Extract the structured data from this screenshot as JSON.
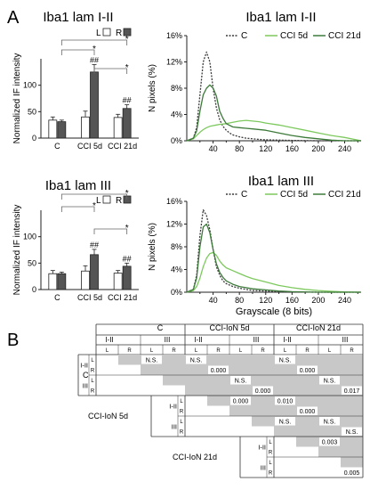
{
  "panel_labels": {
    "a": "A",
    "b": "B"
  },
  "colors": {
    "bar_left": "#ffffff",
    "bar_right": "#555555",
    "line_c": "#3a3a3a",
    "line_cci5": "#7dc95e",
    "line_cci21": "#3d7a3a",
    "table_fill": "#c8c8c8"
  },
  "chart_data": [
    {
      "id": "bar1",
      "type": "bar",
      "title": "Iba1 lam I-II",
      "ylabel": "Normalized IF intensity",
      "ylim": [
        0,
        150
      ],
      "yticks": [
        "0",
        "50",
        "100"
      ],
      "categories": [
        "C",
        "CCI 5d",
        "CCI 21d"
      ],
      "legend": {
        "left": "L",
        "right": "R"
      },
      "series": [
        {
          "name": "L",
          "values": [
            34,
            40,
            39
          ],
          "errors": [
            6,
            11,
            6
          ]
        },
        {
          "name": "R",
          "values": [
            31,
            125,
            56
          ],
          "errors": [
            3,
            14,
            7
          ]
        }
      ],
      "annotations": {
        "right_marks": [
          "##",
          "##"
        ],
        "bracket_marks": [
          "*",
          "*",
          "*"
        ]
      }
    },
    {
      "id": "bar2",
      "type": "bar",
      "title": "Iba1 lam III",
      "ylabel": "Normalized IF intensity",
      "ylim": [
        0,
        150
      ],
      "yticks": [
        "0",
        "50",
        "100"
      ],
      "categories": [
        "C",
        "CCI 5d",
        "CCI 21d"
      ],
      "legend": {
        "left": "L",
        "right": "R"
      },
      "series": [
        {
          "name": "L",
          "values": [
            30,
            35,
            31
          ],
          "errors": [
            6,
            10,
            5
          ]
        },
        {
          "name": "R",
          "values": [
            30,
            66,
            44
          ],
          "errors": [
            3,
            10,
            6
          ]
        }
      ],
      "annotations": {
        "right_marks": [
          "##",
          "##"
        ],
        "bracket_marks": [
          "*",
          "*",
          "*"
        ]
      }
    },
    {
      "id": "line1",
      "type": "line",
      "title": "Iba1 lam I-II",
      "ylabel": "N pixels (%)",
      "xlabel": "",
      "xlim": [
        0,
        265
      ],
      "ylim": [
        0,
        16
      ],
      "xticks": [
        "40",
        "80",
        "120",
        "160",
        "200",
        "240"
      ],
      "yticks": [
        "0%",
        "4%",
        "8%",
        "12%",
        "16%"
      ],
      "series": [
        {
          "name": "C",
          "style": "dotted",
          "x": [
            0,
            10,
            15,
            20,
            25,
            30,
            35,
            40,
            45,
            50,
            55,
            60,
            65,
            70,
            80,
            90,
            100,
            110,
            120,
            140,
            160,
            200,
            240,
            265
          ],
          "y": [
            0,
            0.4,
            2,
            7,
            12,
            13.5,
            12,
            8,
            5,
            3.2,
            2.2,
            1.6,
            1.2,
            0.9,
            0.6,
            0.4,
            0.3,
            0.2,
            0.15,
            0.1,
            0.05,
            0,
            0,
            0
          ]
        },
        {
          "name": "CCI 5d",
          "style": "solid",
          "x": [
            0,
            10,
            15,
            20,
            25,
            30,
            35,
            40,
            45,
            50,
            60,
            70,
            80,
            90,
            100,
            110,
            120,
            140,
            160,
            180,
            200,
            220,
            240,
            255,
            265
          ],
          "y": [
            0,
            0.3,
            0.8,
            1.3,
            1.7,
            2,
            2.2,
            2.3,
            2.4,
            2.5,
            2.6,
            2.8,
            3,
            3.1,
            3,
            2.9,
            2.7,
            2.4,
            2,
            1.6,
            1.2,
            0.8,
            0.5,
            0.2,
            0
          ]
        },
        {
          "name": "CCI 21d",
          "style": "solid",
          "x": [
            0,
            10,
            15,
            20,
            25,
            30,
            35,
            40,
            45,
            50,
            55,
            60,
            70,
            80,
            90,
            100,
            120,
            140,
            160,
            180,
            200,
            220,
            240,
            265
          ],
          "y": [
            0,
            0.4,
            1.5,
            4.5,
            7,
            8,
            8.5,
            8,
            6.8,
            4.5,
            3.4,
            2.6,
            2.1,
            2,
            1.9,
            1.8,
            1.6,
            1.2,
            0.8,
            0.5,
            0.3,
            0.1,
            0,
            0
          ]
        }
      ]
    },
    {
      "id": "line2",
      "type": "line",
      "title": "Iba1 lam III",
      "ylabel": "N pixels (%)",
      "xlabel": "Grayscale (8 bits)",
      "xlim": [
        0,
        265
      ],
      "ylim": [
        0,
        16
      ],
      "xticks": [
        "40",
        "80",
        "120",
        "160",
        "200",
        "240"
      ],
      "yticks": [
        "0%",
        "4%",
        "8%",
        "12%",
        "16%"
      ],
      "series": [
        {
          "name": "C",
          "style": "dotted",
          "x": [
            0,
            10,
            15,
            20,
            25,
            30,
            35,
            40,
            45,
            50,
            55,
            60,
            70,
            80,
            90,
            100,
            120,
            140,
            160,
            200,
            265
          ],
          "y": [
            0,
            0.5,
            3,
            10,
            14.5,
            13.5,
            11,
            7.5,
            4.5,
            3,
            2,
            1.5,
            1,
            0.7,
            0.5,
            0.3,
            0.2,
            0.1,
            0.05,
            0,
            0
          ]
        },
        {
          "name": "CCI 5d",
          "style": "solid",
          "x": [
            0,
            10,
            15,
            20,
            25,
            30,
            35,
            40,
            45,
            50,
            55,
            60,
            70,
            80,
            90,
            100,
            120,
            140,
            160,
            180,
            200,
            220,
            240,
            265
          ],
          "y": [
            0,
            0.3,
            1,
            2.5,
            4.5,
            6,
            6.8,
            7,
            6.5,
            5.5,
            4.8,
            4.3,
            3.8,
            3.3,
            2.8,
            2.4,
            1.8,
            1.2,
            0.8,
            0.5,
            0.3,
            0.15,
            0.05,
            0
          ]
        },
        {
          "name": "CCI 21d",
          "style": "solid",
          "x": [
            0,
            10,
            15,
            20,
            25,
            30,
            35,
            40,
            45,
            50,
            55,
            60,
            70,
            80,
            90,
            100,
            120,
            140,
            160,
            200,
            265
          ],
          "y": [
            0,
            0.5,
            2.5,
            8,
            11.5,
            12,
            10.5,
            7.5,
            5,
            3.5,
            2.6,
            2,
            1.4,
            1,
            0.8,
            0.6,
            0.4,
            0.2,
            0.1,
            0,
            0
          ]
        }
      ]
    },
    {
      "id": "table",
      "type": "table",
      "groups": [
        "C",
        "CCI-IoN 5d",
        "CCI-IoN 21d"
      ],
      "layers": [
        "I-II",
        "III"
      ],
      "sides": [
        "L",
        "R"
      ],
      "row_groups": [
        "C",
        "CCI-IoN 5d",
        "CCI-IoN 21d"
      ],
      "cells": [
        {
          "r": 0,
          "c": 2,
          "text": "N.S."
        },
        {
          "r": 0,
          "c": 4,
          "text": "N.S."
        },
        {
          "r": 0,
          "c": 8,
          "text": "N.S."
        },
        {
          "r": 1,
          "c": 5,
          "text": "0.000"
        },
        {
          "r": 1,
          "c": 9,
          "text": "0.000"
        },
        {
          "r": 2,
          "c": 6,
          "text": "N.S."
        },
        {
          "r": 2,
          "c": 10,
          "text": "N.S."
        },
        {
          "r": 3,
          "c": 7,
          "text": "0.000"
        },
        {
          "r": 3,
          "c": 11,
          "text": "0.017"
        },
        {
          "r": 4,
          "c": 6,
          "text": "0.000"
        },
        {
          "r": 4,
          "c": 8,
          "text": "0.010"
        },
        {
          "r": 5,
          "c": 9,
          "text": "0.000"
        },
        {
          "r": 6,
          "c": 8,
          "text": "N.S."
        },
        {
          "r": 6,
          "c": 10,
          "text": "N.S."
        },
        {
          "r": 7,
          "c": 11,
          "text": "N.S."
        },
        {
          "r": 8,
          "c": 10,
          "text": "0.003"
        },
        {
          "r": 11,
          "c": 11,
          "text": "0.005"
        }
      ]
    }
  ]
}
